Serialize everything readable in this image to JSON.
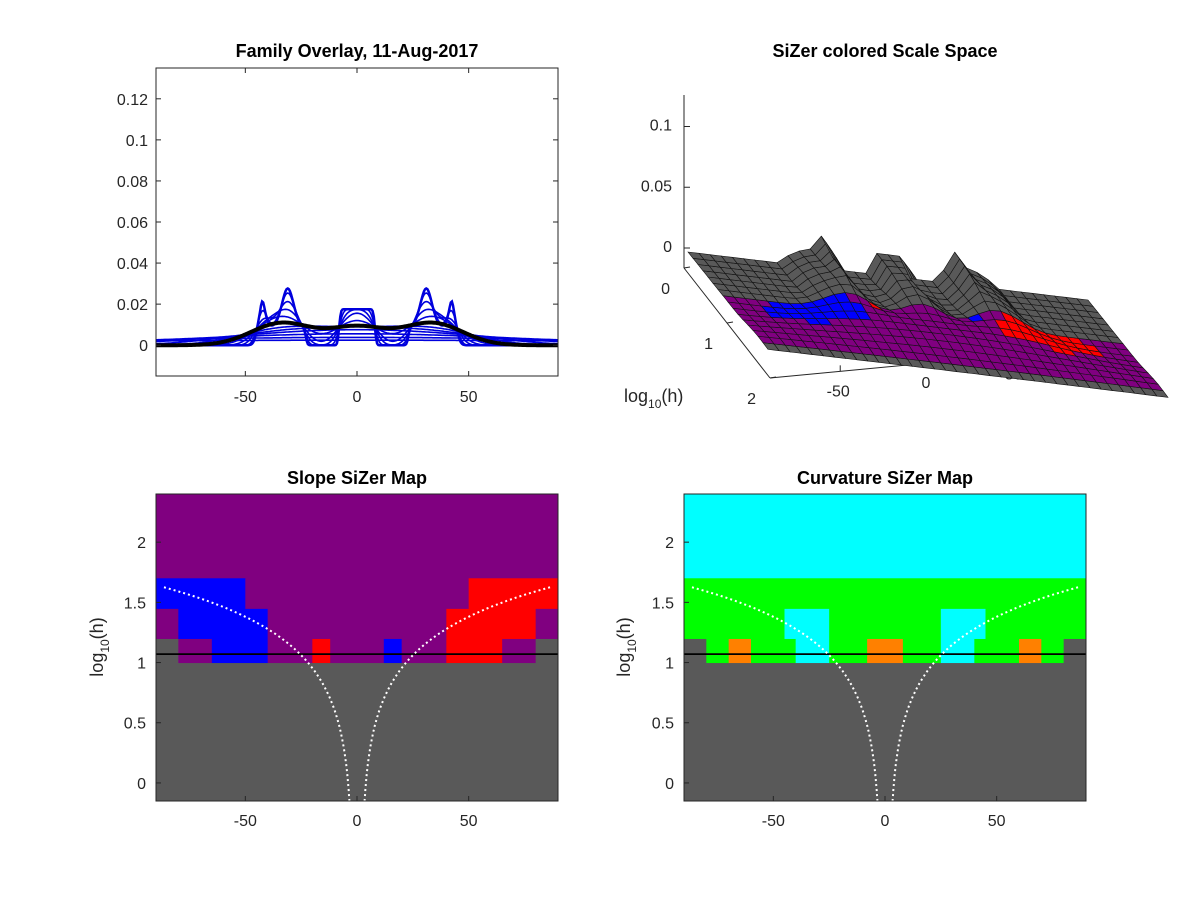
{
  "figure_date": "11-Aug-2017",
  "colors": {
    "gray": "#595959",
    "purple": "#800080",
    "blue": "#0000ff",
    "red": "#ff0000",
    "cyan": "#00ffff",
    "green": "#00ff00",
    "orange": "#ff8000",
    "family": "#0000dd",
    "pilot": "#000000"
  },
  "chart_data": [
    {
      "id": "family",
      "type": "line",
      "title": "Family Overlay, 11-Aug-2017",
      "xlim": [
        -90,
        90
      ],
      "ylim": [
        -0.015,
        0.135
      ],
      "xticks": [
        -50,
        0,
        50
      ],
      "xtick_labels": [
        "-50",
        "0",
        "50"
      ],
      "yticks": [
        0,
        0.02,
        0.04,
        0.06,
        0.08,
        0.1,
        0.12
      ],
      "ytick_labels": [
        "0",
        "0.02",
        "0.04",
        "0.06",
        "0.08",
        "0.1",
        "0.12"
      ],
      "mixture": {
        "weights": [
          0.12,
          0.06,
          0.18,
          0.12,
          0.06,
          0.18,
          0.28
        ],
        "means": [
          -31,
          -43,
          -33,
          31,
          43,
          33,
          0
        ],
        "widths": [
          2.5,
          1.5,
          10,
          2.5,
          1.5,
          10,
          8
        ],
        "kind": [
          "gauss",
          "gauss",
          "uniform",
          "gauss",
          "gauss",
          "uniform",
          "uniform"
        ]
      },
      "bandwidths": [
        0.6,
        1.5,
        3,
        5,
        8,
        11.8,
        18,
        27,
        42,
        65,
        100,
        160
      ],
      "highlight_bandwidth": 11.8
    },
    {
      "id": "surface",
      "type": "surface3d",
      "title": "SiZer colored Scale Space",
      "x_ticks": [
        "-50",
        "0",
        "50"
      ],
      "x_tick_values": [
        -50,
        0,
        50
      ],
      "h_ticks": [
        "0",
        "1",
        "2"
      ],
      "h_tick_values": [
        0,
        1,
        2
      ],
      "z_ticks": [
        "0",
        "0.05",
        "0.1"
      ],
      "z_tick_values": [
        0,
        0.05,
        0.1
      ],
      "h_label_base": "log",
      "h_label_sub": "10",
      "h_label_tail": "(h)"
    },
    {
      "id": "slope",
      "type": "heatmap",
      "title": "Slope SiZer Map",
      "xlim": [
        -90,
        90
      ],
      "ylim": [
        -0.15,
        2.4
      ],
      "xticks": [
        -50,
        0,
        50
      ],
      "xtick_labels": [
        "-50",
        "0",
        "50"
      ],
      "yticks": [
        0,
        0.5,
        1,
        1.5,
        2
      ],
      "ytick_labels": [
        "0",
        "0.5",
        "1",
        "1.5",
        "2"
      ],
      "ylabel_base": "log",
      "ylabel_sub": "10",
      "ylabel_tail": "(h)",
      "highlight_log10h": 1.07,
      "background": "purple",
      "bands": [
        {
          "y0": -0.15,
          "y1": 1.0,
          "cells": [
            [
              -90,
              90,
              "gray"
            ]
          ]
        },
        {
          "y0": 1.0,
          "y1": 1.2,
          "cells": [
            [
              -90,
              -80,
              "gray"
            ],
            [
              -80,
              -65,
              "purple"
            ],
            [
              -65,
              -40,
              "blue"
            ],
            [
              -40,
              -20,
              "purple"
            ],
            [
              -20,
              -12,
              "red"
            ],
            [
              -12,
              12,
              "purple"
            ],
            [
              12,
              20,
              "blue"
            ],
            [
              20,
              40,
              "purple"
            ],
            [
              40,
              65,
              "red"
            ],
            [
              65,
              80,
              "purple"
            ],
            [
              80,
              90,
              "gray"
            ]
          ]
        },
        {
          "y0": 1.2,
          "y1": 1.45,
          "cells": [
            [
              -90,
              -80,
              "purple"
            ],
            [
              -80,
              -40,
              "blue"
            ],
            [
              -40,
              40,
              "purple"
            ],
            [
              40,
              80,
              "red"
            ],
            [
              80,
              90,
              "purple"
            ]
          ]
        },
        {
          "y0": 1.45,
          "y1": 1.7,
          "cells": [
            [
              -90,
              -50,
              "blue"
            ],
            [
              -50,
              50,
              "purple"
            ],
            [
              50,
              90,
              "red"
            ]
          ]
        }
      ]
    },
    {
      "id": "curvature",
      "type": "heatmap",
      "title": "Curvature SiZer Map",
      "xlim": [
        -90,
        90
      ],
      "ylim": [
        -0.15,
        2.4
      ],
      "xticks": [
        -50,
        0,
        50
      ],
      "xtick_labels": [
        "-50",
        "0",
        "50"
      ],
      "yticks": [
        0,
        0.5,
        1,
        1.5,
        2
      ],
      "ytick_labels": [
        "0",
        "0.5",
        "1",
        "1.5",
        "2"
      ],
      "ylabel_base": "log",
      "ylabel_sub": "10",
      "ylabel_tail": "(h)",
      "highlight_log10h": 1.07,
      "background": "cyan",
      "bands": [
        {
          "y0": -0.15,
          "y1": 1.0,
          "cells": [
            [
              -90,
              90,
              "gray"
            ]
          ]
        },
        {
          "y0": 1.0,
          "y1": 1.2,
          "cells": [
            [
              -90,
              -80,
              "gray"
            ],
            [
              -80,
              -70,
              "green"
            ],
            [
              -70,
              -60,
              "orange"
            ],
            [
              -60,
              -40,
              "green"
            ],
            [
              -40,
              -25,
              "cyan"
            ],
            [
              -25,
              -8,
              "green"
            ],
            [
              -8,
              8,
              "orange"
            ],
            [
              8,
              25,
              "green"
            ],
            [
              25,
              40,
              "cyan"
            ],
            [
              40,
              60,
              "green"
            ],
            [
              60,
              70,
              "orange"
            ],
            [
              70,
              80,
              "green"
            ],
            [
              80,
              90,
              "gray"
            ]
          ]
        },
        {
          "y0": 1.2,
          "y1": 1.45,
          "cells": [
            [
              -90,
              -45,
              "green"
            ],
            [
              -45,
              -25,
              "cyan"
            ],
            [
              -25,
              25,
              "green"
            ],
            [
              25,
              45,
              "cyan"
            ],
            [
              45,
              90,
              "green"
            ]
          ]
        },
        {
          "y0": 1.45,
          "y1": 1.7,
          "cells": [
            [
              -90,
              90,
              "green"
            ]
          ]
        }
      ]
    }
  ]
}
